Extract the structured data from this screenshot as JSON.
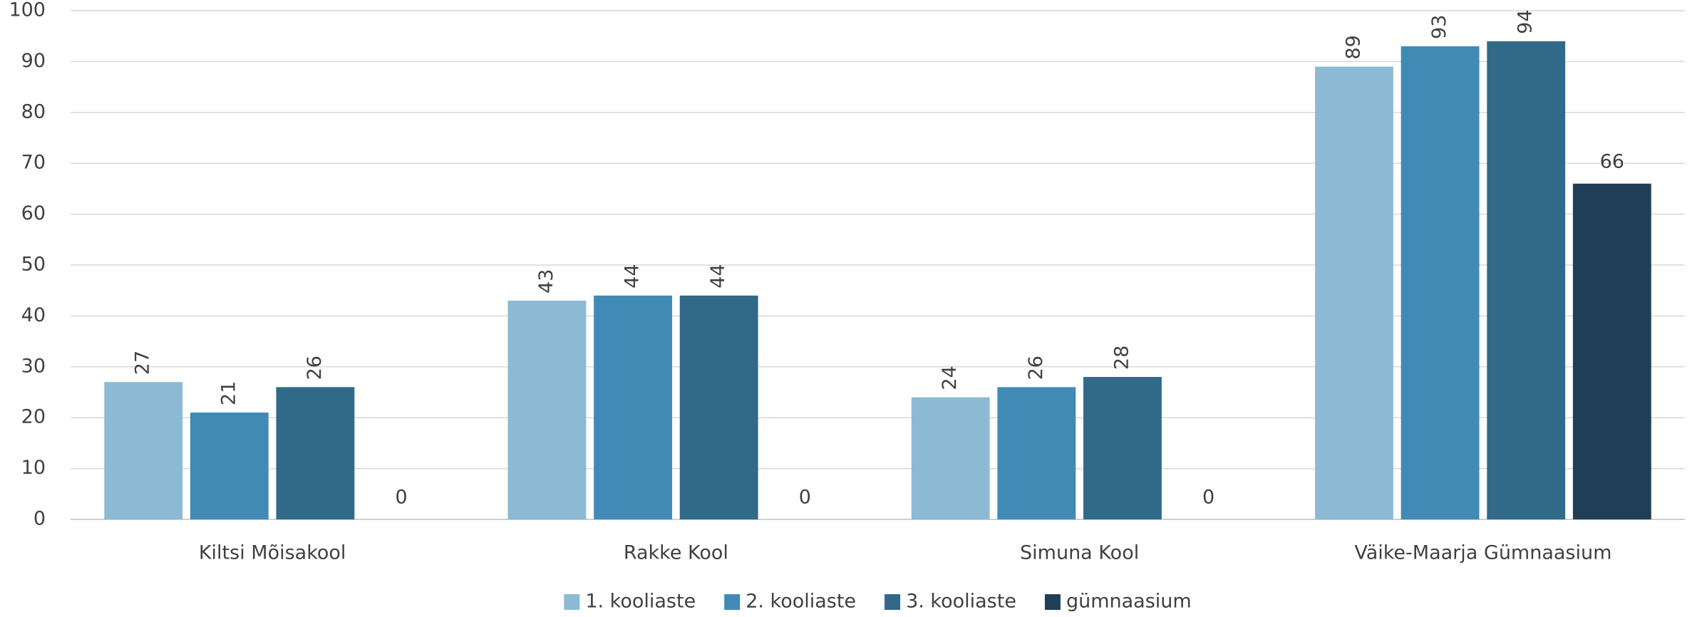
{
  "chart_data": {
    "type": "bar",
    "categories": [
      "Kiltsi Mõisakool",
      "Rakke Kool",
      "Simuna Kool",
      "Väike-Maarja Gümnaasium"
    ],
    "series": [
      {
        "name": "1. kooliaste",
        "color": "#8cbad5",
        "values": [
          27,
          43,
          24,
          89
        ]
      },
      {
        "name": "2. kooliaste",
        "color": "#418ab5",
        "values": [
          21,
          44,
          26,
          93
        ]
      },
      {
        "name": "3. kooliaste",
        "color": "#316a88",
        "values": [
          26,
          44,
          28,
          94
        ]
      },
      {
        "name": "gümnaasium",
        "color": "#203f56",
        "values": [
          0,
          0,
          0,
          66
        ]
      }
    ],
    "ylim": [
      0,
      100
    ],
    "yticks": [
      0,
      10,
      20,
      30,
      40,
      50,
      60,
      70,
      80,
      90,
      100
    ],
    "grid": true,
    "legend": "bottom"
  }
}
